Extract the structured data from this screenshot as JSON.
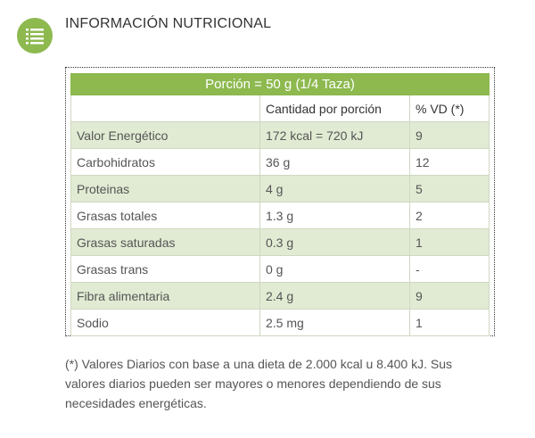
{
  "header": {
    "title": "INFORMACIÓN NUTRICIONAL"
  },
  "table": {
    "caption": "Porción = 50 g (1/4 Taza)",
    "columns": [
      "Cantidad por porción",
      "% VD (*)"
    ],
    "rows": [
      [
        "Valor Energético",
        "172 kcal = 720 kJ",
        "9"
      ],
      [
        "Carbohidratos",
        "36 g",
        "12"
      ],
      [
        "Proteinas",
        "4 g",
        "5"
      ],
      [
        "Grasas totales",
        "1.3 g",
        "2"
      ],
      [
        "Grasas saturadas",
        "0.3 g",
        "1"
      ],
      [
        "Grasas trans",
        "0 g",
        "-"
      ],
      [
        "Fibra alimentaria",
        "2.4 g",
        "9"
      ],
      [
        "Sodio",
        "2.5 mg",
        "1"
      ]
    ]
  },
  "footnote": "(*) Valores Diarios con base a una dieta de 2.000 kcal u 8.400 kJ. Sus valores diarios pueden ser mayores o menores dependiendo de sus necesidades energéticas."
}
